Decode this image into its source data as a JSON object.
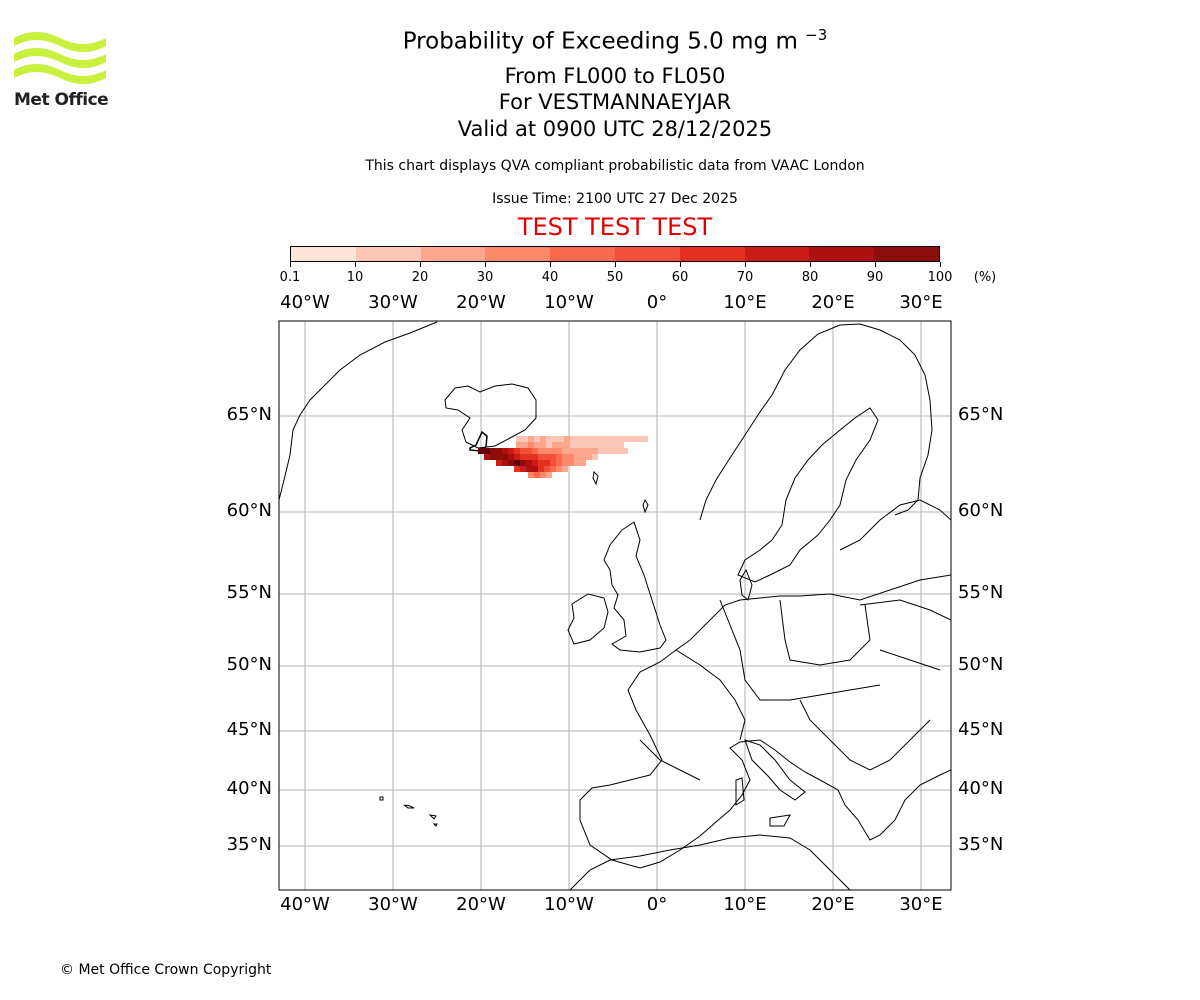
{
  "logo": {
    "name": "Met Office"
  },
  "title": {
    "main": "Probability of Exceeding 5.0 mg m",
    "main_sup": "−3",
    "levels": "From FL000 to FL050",
    "location": "For VESTMANNAEYJAR",
    "valid": "Valid at 0900 UTC 28/12/2025",
    "description": "This chart displays QVA compliant probabilistic data from VAAC London",
    "issue": "Issue Time: 2100 UTC 27 Dec 2025",
    "test_banner": "TEST TEST TEST"
  },
  "colorbar": {
    "labels": [
      "0.1",
      "10",
      "20",
      "30",
      "40",
      "50",
      "60",
      "70",
      "80",
      "90",
      "100"
    ],
    "unit": "(%)",
    "colors": [
      "#fee5d9",
      "#fcc5b6",
      "#fca68e",
      "#fc8a6a",
      "#fb6a4a",
      "#f44f39",
      "#e3301f",
      "#cb1b16",
      "#ad1010",
      "#8c0e0b",
      "#67000d"
    ]
  },
  "map": {
    "lon_labels": [
      "40°W",
      "30°W",
      "20°W",
      "10°W",
      "0°",
      "10°E",
      "20°E",
      "30°E"
    ],
    "lat_labels": [
      "65°N",
      "60°N",
      "55°N",
      "50°N",
      "45°N",
      "40°N",
      "35°N"
    ],
    "plume_cells_intensity": [
      90,
      85,
      80,
      70,
      65,
      55,
      50,
      40,
      30,
      25,
      20,
      15,
      10
    ]
  },
  "footer": {
    "copyright": "© Met Office Crown Copyright"
  }
}
